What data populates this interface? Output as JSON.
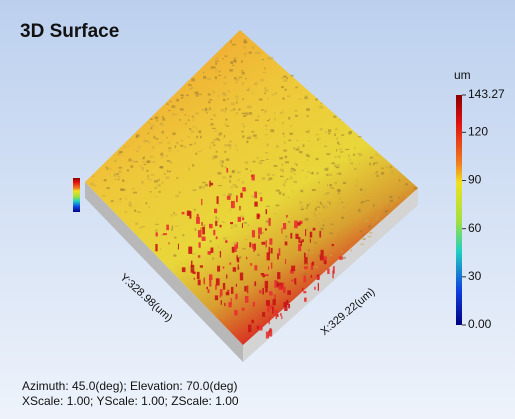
{
  "chart_data": {
    "type": "surface",
    "title": "3D Surface",
    "x_label": "X:329.22(um)",
    "y_label": "Y:328.98(um)",
    "colorbar_label": "um",
    "zlim": [
      0,
      143.27
    ],
    "zticks": [
      {
        "value": 0,
        "label": "0.00"
      },
      30,
      60,
      90,
      120,
      143.27
    ],
    "footer": [
      "Azimuth: 45.0(deg); Elevation: 70.0(deg)",
      "XScale: 1.00; YScale: 1.00; ZScale: 1.00"
    ]
  }
}
